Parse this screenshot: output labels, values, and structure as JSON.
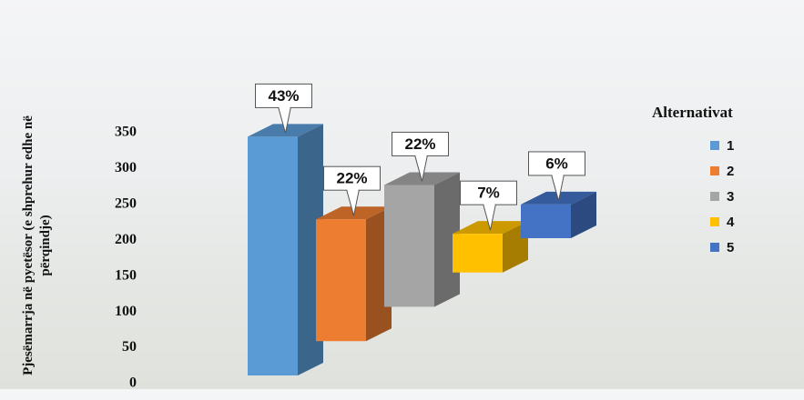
{
  "chart_data": {
    "type": "bar3d",
    "y_label": "Pjesëmarrja në pyetësor (e shprehur edhe në përqindje)",
    "categories": [
      "1",
      "2",
      "3",
      "4",
      "5"
    ],
    "values": [
      333,
      170,
      170,
      54,
      47
    ],
    "colors": [
      "#5b9bd5",
      "#ed7d31",
      "#a5a5a5",
      "#ffc000",
      "#4472c4"
    ],
    "annotations": [
      "43%",
      "22%",
      "22%",
      "7%",
      "6%"
    ],
    "legend_title": "Alternativat",
    "legend": "right",
    "ylim": [
      0,
      350
    ],
    "yticks": [
      0,
      50,
      100,
      150,
      200,
      250,
      300,
      350
    ]
  }
}
